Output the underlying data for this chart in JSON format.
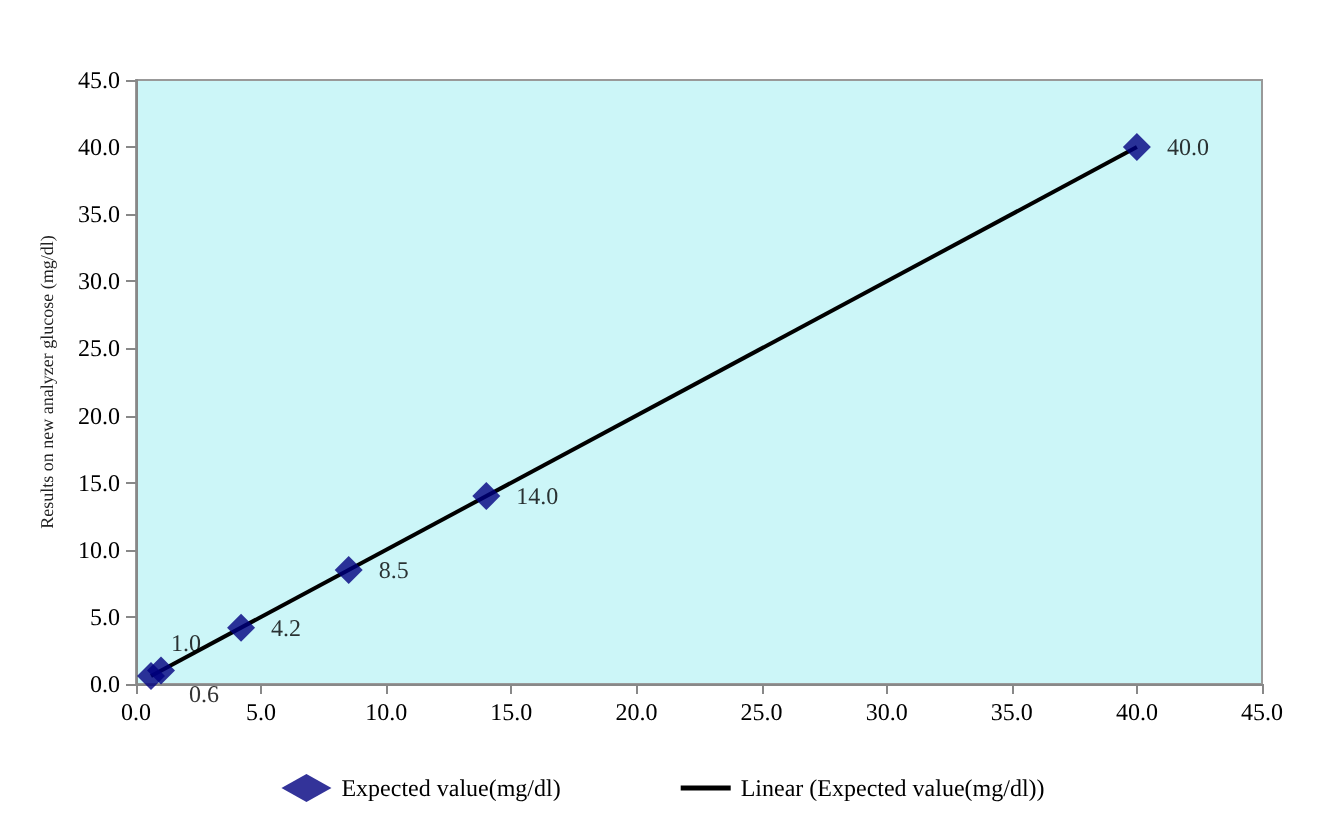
{
  "chart_data": {
    "type": "scatter",
    "ylabel": "Results on new analyzer glucose (mg/dl)",
    "xlim": [
      0,
      45
    ],
    "ylim": [
      0,
      45
    ],
    "xticks": [
      {
        "value": 0,
        "label": "0.0"
      },
      {
        "value": 5,
        "label": "5.0"
      },
      {
        "value": 10,
        "label": "10.0"
      },
      {
        "value": 15,
        "label": "15.0"
      },
      {
        "value": 20,
        "label": "20.0"
      },
      {
        "value": 25,
        "label": "25.0"
      },
      {
        "value": 30,
        "label": "30.0"
      },
      {
        "value": 35,
        "label": "35.0"
      },
      {
        "value": 40,
        "label": "40.0"
      },
      {
        "value": 45,
        "label": "45.0"
      }
    ],
    "yticks": [
      {
        "value": 0,
        "label": "0.0"
      },
      {
        "value": 5,
        "label": "5.0"
      },
      {
        "value": 10,
        "label": "10.0"
      },
      {
        "value": 15,
        "label": "15.0"
      },
      {
        "value": 20,
        "label": "20.0"
      },
      {
        "value": 25,
        "label": "25.0"
      },
      {
        "value": 30,
        "label": "30.0"
      },
      {
        "value": 35,
        "label": "35.0"
      },
      {
        "value": 40,
        "label": "40.0"
      },
      {
        "value": 45,
        "label": "45.0"
      }
    ],
    "series": [
      {
        "name": "Expected value(mg/dl)",
        "color": "#000080",
        "x": [
          0.6,
          1.0,
          4.2,
          8.5,
          14.0,
          40.0
        ],
        "values": [
          0.6,
          1.0,
          4.2,
          8.5,
          14.0,
          40.0
        ],
        "value_labels": [
          "0.6",
          "1.0",
          "4.2",
          "8.5",
          "14.0",
          "40.0"
        ],
        "marker": "diamond"
      },
      {
        "name": "Linear (Expected value(mg/dl))",
        "type": "line",
        "color": "#000000",
        "x": [
          0.6,
          40.0
        ],
        "values": [
          0.6,
          40.0
        ],
        "marker": "none",
        "line_style": "solid"
      }
    ],
    "grid": false,
    "legend": "bottom"
  }
}
